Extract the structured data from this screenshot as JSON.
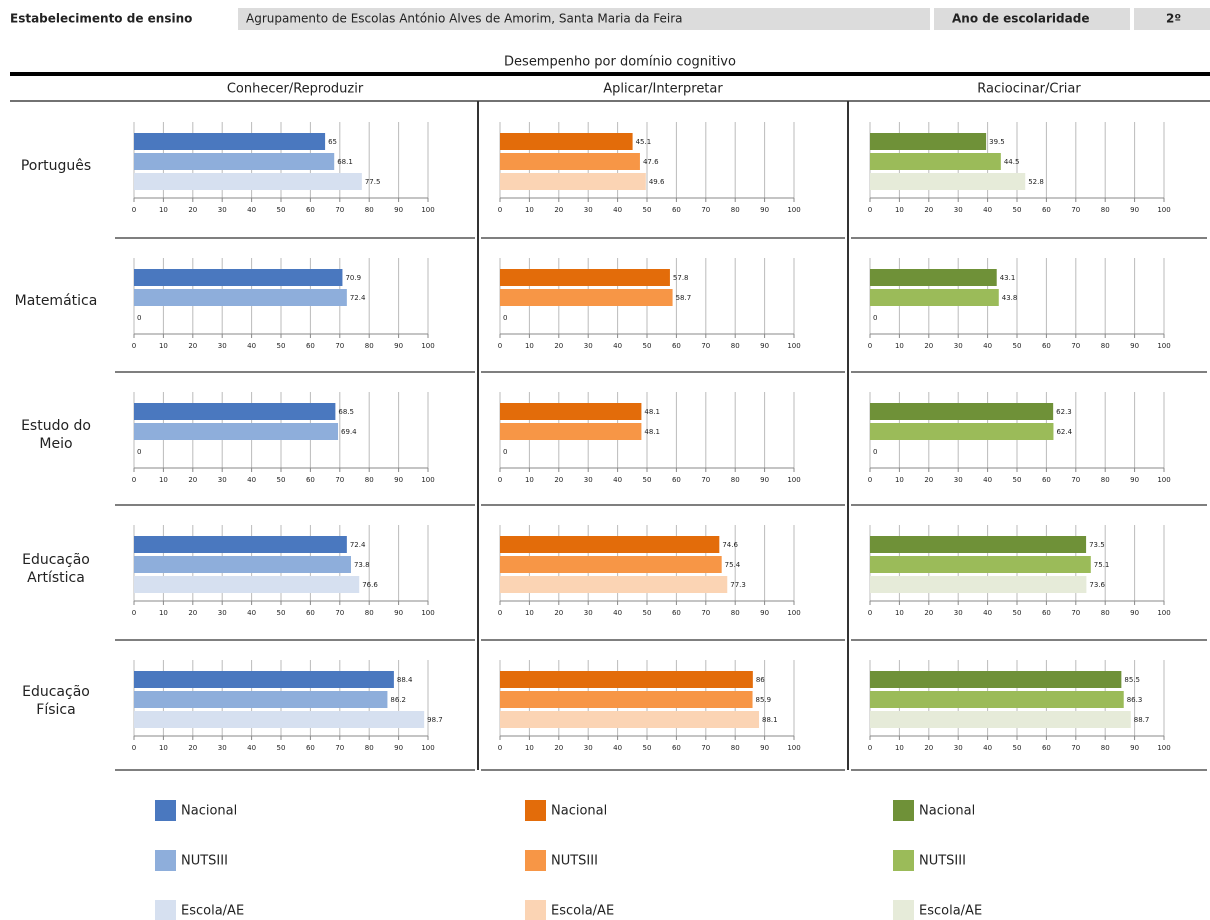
{
  "header": {
    "school_label": "Estabelecimento de ensino",
    "school": "Agrupamento de Escolas António Alves de Amorim, Santa Maria da Feira",
    "year_label": "Ano de escolaridade",
    "year": "2º"
  },
  "title": "Desempenho por domínio cognitivo",
  "columns": [
    "Conhecer/Reproduzir",
    "Aplicar/Interpretar",
    "Raciocinar/Criar"
  ],
  "rows": [
    "Português",
    "Matemática",
    "Estudo do Meio",
    "Educação Artística",
    "Educação Física"
  ],
  "chart_data": [
    {
      "type": "bar",
      "orientation": "horizontal",
      "xlim": [
        0,
        100
      ],
      "xticks": [
        0,
        10,
        20,
        30,
        40,
        50,
        60,
        70,
        80,
        90,
        100
      ],
      "grid": true,
      "series": [
        {
          "name": "Nacional",
          "color": "#4a78bf",
          "values": [
            65
          ]
        },
        {
          "name": "NUTSIII",
          "color": "#8eaedb",
          "values": [
            68.1
          ]
        },
        {
          "name": "Escola/AE",
          "color": "#d6e0f0",
          "values": [
            77.5
          ]
        }
      ]
    },
    {
      "type": "bar",
      "orientation": "horizontal",
      "xlim": [
        0,
        100
      ],
      "xticks": [
        0,
        10,
        20,
        30,
        40,
        50,
        60,
        70,
        80,
        90,
        100
      ],
      "grid": true,
      "series": [
        {
          "name": "Nacional",
          "color": "#e36c0a",
          "values": [
            45.1
          ]
        },
        {
          "name": "NUTSIII",
          "color": "#f79646",
          "values": [
            47.6
          ]
        },
        {
          "name": "Escola/AE",
          "color": "#fbd4b4",
          "values": [
            49.6
          ]
        }
      ]
    },
    {
      "type": "bar",
      "orientation": "horizontal",
      "xlim": [
        0,
        100
      ],
      "xticks": [
        0,
        10,
        20,
        30,
        40,
        50,
        60,
        70,
        80,
        90,
        100
      ],
      "grid": true,
      "series": [
        {
          "name": "Nacional",
          "color": "#6f9138",
          "values": [
            39.5
          ]
        },
        {
          "name": "NUTSIII",
          "color": "#9bbb59",
          "values": [
            44.5
          ]
        },
        {
          "name": "Escola/AE",
          "color": "#e6ebd9",
          "values": [
            52.8
          ]
        }
      ]
    },
    {
      "type": "bar",
      "orientation": "horizontal",
      "xlim": [
        0,
        100
      ],
      "xticks": [
        0,
        10,
        20,
        30,
        40,
        50,
        60,
        70,
        80,
        90,
        100
      ],
      "grid": true,
      "series": [
        {
          "name": "Nacional",
          "color": "#4a78bf",
          "values": [
            70.9
          ]
        },
        {
          "name": "NUTSIII",
          "color": "#8eaedb",
          "values": [
            72.4
          ]
        },
        {
          "name": "Escola/AE",
          "color": "#d6e0f0",
          "values": [
            0
          ]
        }
      ]
    },
    {
      "type": "bar",
      "orientation": "horizontal",
      "xlim": [
        0,
        100
      ],
      "xticks": [
        0,
        10,
        20,
        30,
        40,
        50,
        60,
        70,
        80,
        90,
        100
      ],
      "grid": true,
      "series": [
        {
          "name": "Nacional",
          "color": "#e36c0a",
          "values": [
            57.8
          ]
        },
        {
          "name": "NUTSIII",
          "color": "#f79646",
          "values": [
            58.7
          ]
        },
        {
          "name": "Escola/AE",
          "color": "#fbd4b4",
          "values": [
            0
          ]
        }
      ]
    },
    {
      "type": "bar",
      "orientation": "horizontal",
      "xlim": [
        0,
        100
      ],
      "xticks": [
        0,
        10,
        20,
        30,
        40,
        50,
        60,
        70,
        80,
        90,
        100
      ],
      "grid": true,
      "series": [
        {
          "name": "Nacional",
          "color": "#6f9138",
          "values": [
            43.1
          ]
        },
        {
          "name": "NUTSIII",
          "color": "#9bbb59",
          "values": [
            43.8
          ]
        },
        {
          "name": "Escola/AE",
          "color": "#e6ebd9",
          "values": [
            0
          ]
        }
      ]
    },
    {
      "type": "bar",
      "orientation": "horizontal",
      "xlim": [
        0,
        100
      ],
      "xticks": [
        0,
        10,
        20,
        30,
        40,
        50,
        60,
        70,
        80,
        90,
        100
      ],
      "grid": true,
      "series": [
        {
          "name": "Nacional",
          "color": "#4a78bf",
          "values": [
            68.5
          ]
        },
        {
          "name": "NUTSIII",
          "color": "#8eaedb",
          "values": [
            69.4
          ]
        },
        {
          "name": "Escola/AE",
          "color": "#d6e0f0",
          "values": [
            0
          ]
        }
      ]
    },
    {
      "type": "bar",
      "orientation": "horizontal",
      "xlim": [
        0,
        100
      ],
      "xticks": [
        0,
        10,
        20,
        30,
        40,
        50,
        60,
        70,
        80,
        90,
        100
      ],
      "grid": true,
      "series": [
        {
          "name": "Nacional",
          "color": "#e36c0a",
          "values": [
            48.1
          ]
        },
        {
          "name": "NUTSIII",
          "color": "#f79646",
          "values": [
            48.1
          ]
        },
        {
          "name": "Escola/AE",
          "color": "#fbd4b4",
          "values": [
            0
          ]
        }
      ]
    },
    {
      "type": "bar",
      "orientation": "horizontal",
      "xlim": [
        0,
        100
      ],
      "xticks": [
        0,
        10,
        20,
        30,
        40,
        50,
        60,
        70,
        80,
        90,
        100
      ],
      "grid": true,
      "series": [
        {
          "name": "Nacional",
          "color": "#6f9138",
          "values": [
            62.3
          ]
        },
        {
          "name": "NUTSIII",
          "color": "#9bbb59",
          "values": [
            62.4
          ]
        },
        {
          "name": "Escola/AE",
          "color": "#e6ebd9",
          "values": [
            0
          ]
        }
      ]
    },
    {
      "type": "bar",
      "orientation": "horizontal",
      "xlim": [
        0,
        100
      ],
      "xticks": [
        0,
        10,
        20,
        30,
        40,
        50,
        60,
        70,
        80,
        90,
        100
      ],
      "grid": true,
      "series": [
        {
          "name": "Nacional",
          "color": "#4a78bf",
          "values": [
            72.4
          ]
        },
        {
          "name": "NUTSIII",
          "color": "#8eaedb",
          "values": [
            73.8
          ]
        },
        {
          "name": "Escola/AE",
          "color": "#d6e0f0",
          "values": [
            76.6
          ]
        }
      ]
    },
    {
      "type": "bar",
      "orientation": "horizontal",
      "xlim": [
        0,
        100
      ],
      "xticks": [
        0,
        10,
        20,
        30,
        40,
        50,
        60,
        70,
        80,
        90,
        100
      ],
      "grid": true,
      "series": [
        {
          "name": "Nacional",
          "color": "#e36c0a",
          "values": [
            74.6
          ]
        },
        {
          "name": "NUTSIII",
          "color": "#f79646",
          "values": [
            75.4
          ]
        },
        {
          "name": "Escola/AE",
          "color": "#fbd4b4",
          "values": [
            77.3
          ]
        }
      ]
    },
    {
      "type": "bar",
      "orientation": "horizontal",
      "xlim": [
        0,
        100
      ],
      "xticks": [
        0,
        10,
        20,
        30,
        40,
        50,
        60,
        70,
        80,
        90,
        100
      ],
      "grid": true,
      "series": [
        {
          "name": "Nacional",
          "color": "#6f9138",
          "values": [
            73.5
          ]
        },
        {
          "name": "NUTSIII",
          "color": "#9bbb59",
          "values": [
            75.1
          ]
        },
        {
          "name": "Escola/AE",
          "color": "#e6ebd9",
          "values": [
            73.6
          ]
        }
      ]
    },
    {
      "type": "bar",
      "orientation": "horizontal",
      "xlim": [
        0,
        100
      ],
      "xticks": [
        0,
        10,
        20,
        30,
        40,
        50,
        60,
        70,
        80,
        90,
        100
      ],
      "grid": true,
      "series": [
        {
          "name": "Nacional",
          "color": "#4a78bf",
          "values": [
            88.4
          ]
        },
        {
          "name": "NUTSIII",
          "color": "#8eaedb",
          "values": [
            86.2
          ]
        },
        {
          "name": "Escola/AE",
          "color": "#d6e0f0",
          "values": [
            98.7
          ]
        }
      ]
    },
    {
      "type": "bar",
      "orientation": "horizontal",
      "xlim": [
        0,
        100
      ],
      "xticks": [
        0,
        10,
        20,
        30,
        40,
        50,
        60,
        70,
        80,
        90,
        100
      ],
      "grid": true,
      "series": [
        {
          "name": "Nacional",
          "color": "#e36c0a",
          "values": [
            86
          ]
        },
        {
          "name": "NUTSIII",
          "color": "#f79646",
          "values": [
            85.9
          ]
        },
        {
          "name": "Escola/AE",
          "color": "#fbd4b4",
          "values": [
            88.1
          ]
        }
      ]
    },
    {
      "type": "bar",
      "orientation": "horizontal",
      "xlim": [
        0,
        100
      ],
      "xticks": [
        0,
        10,
        20,
        30,
        40,
        50,
        60,
        70,
        80,
        90,
        100
      ],
      "grid": true,
      "series": [
        {
          "name": "Nacional",
          "color": "#6f9138",
          "values": [
            85.5
          ]
        },
        {
          "name": "NUTSIII",
          "color": "#9bbb59",
          "values": [
            86.3
          ]
        },
        {
          "name": "Escola/AE",
          "color": "#e6ebd9",
          "values": [
            88.7
          ]
        }
      ]
    }
  ]
}
